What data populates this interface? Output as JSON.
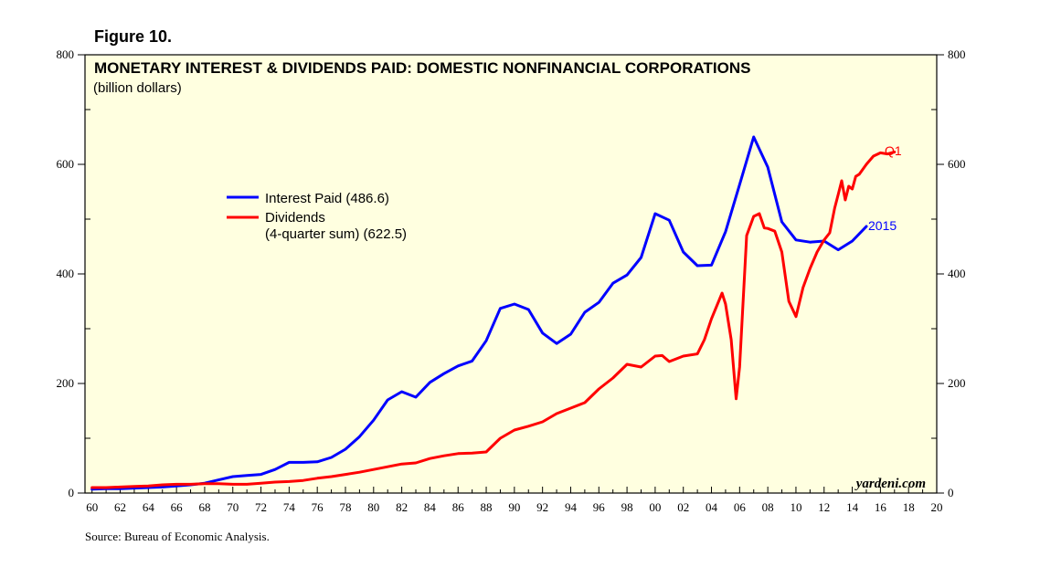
{
  "figure_label": "Figure 10.",
  "source": "Source: Bureau of Economic Analysis.",
  "colors": {
    "background": "#FFFFE0",
    "interest": "#0000FF",
    "dividends": "#FF0000"
  },
  "chart_data": {
    "type": "line",
    "title": "MONETARY INTEREST & DIVIDENDS PAID: DOMESTIC NONFINANCIAL CORPORATIONS",
    "subtitle": "(billion dollars)",
    "credit": "yardeni.com",
    "xlim": [
      1959.5,
      2020
    ],
    "ylim": [
      0,
      800
    ],
    "y_ticks": [
      0,
      200,
      400,
      600,
      800
    ],
    "x_ticks": [
      1960,
      1962,
      1964,
      1966,
      1968,
      1970,
      1972,
      1974,
      1976,
      1978,
      1980,
      1982,
      1984,
      1986,
      1988,
      1990,
      1992,
      1994,
      1996,
      1998,
      2000,
      2002,
      2004,
      2006,
      2008,
      2010,
      2012,
      2014,
      2016,
      2018,
      2020
    ],
    "x_tick_labels": [
      "60",
      "62",
      "64",
      "66",
      "68",
      "70",
      "72",
      "74",
      "76",
      "78",
      "80",
      "82",
      "84",
      "86",
      "88",
      "90",
      "92",
      "94",
      "96",
      "98",
      "00",
      "02",
      "04",
      "06",
      "08",
      "10",
      "12",
      "14",
      "16",
      "18",
      "20"
    ],
    "series": [
      {
        "name": "Interest Paid",
        "legend": "Interest Paid (486.6)",
        "color": "#0000FF",
        "end_label": "2015",
        "x": [
          1960,
          1961,
          1962,
          1963,
          1964,
          1965,
          1966,
          1967,
          1968,
          1969,
          1970,
          1971,
          1972,
          1973,
          1974,
          1975,
          1976,
          1977,
          1978,
          1979,
          1980,
          1981,
          1982,
          1983,
          1984,
          1985,
          1986,
          1987,
          1988,
          1989,
          1990,
          1991,
          1992,
          1993,
          1994,
          1995,
          1996,
          1997,
          1998,
          1999,
          2000,
          2001,
          2002,
          2003,
          2004,
          2005,
          2006,
          2007,
          2008,
          2009,
          2010,
          2011,
          2012,
          2013,
          2014,
          2015
        ],
        "values": [
          7,
          8,
          8,
          9,
          10,
          11,
          13,
          15,
          18,
          24,
          30,
          32,
          34,
          43,
          56,
          56,
          57,
          65,
          80,
          103,
          133,
          170,
          185,
          175,
          202,
          218,
          232,
          241,
          278,
          337,
          345,
          335,
          292,
          273,
          290,
          330,
          348,
          383,
          398,
          430,
          510,
          498,
          440,
          415,
          416,
          477,
          563,
          650,
          595,
          495,
          462,
          458,
          460,
          444,
          460,
          486.6
        ]
      },
      {
        "name": "Dividends",
        "legend": "Dividends",
        "legend_line2": "(4-quarter sum) (622.5)",
        "color": "#FF0000",
        "end_label": "Q1",
        "x": [
          1960,
          1961,
          1962,
          1963,
          1964,
          1965,
          1966,
          1967,
          1968,
          1969,
          1970,
          1971,
          1972,
          1973,
          1974,
          1975,
          1976,
          1977,
          1978,
          1979,
          1980,
          1981,
          1982,
          1983,
          1984,
          1985,
          1986,
          1987,
          1988,
          1989,
          1990,
          1991,
          1992,
          1993,
          1994,
          1995,
          1996,
          1997,
          1998,
          1999,
          2000,
          2000.5,
          2001,
          2002,
          2003,
          2003.5,
          2004,
          2004.75,
          2005,
          2005.4,
          2005.75,
          2006,
          2006.5,
          2007,
          2007.4,
          2007.75,
          2008,
          2008.5,
          2009,
          2009.5,
          2010,
          2010.5,
          2011,
          2011.5,
          2012,
          2012.4,
          2012.75,
          2013,
          2013.25,
          2013.5,
          2013.75,
          2014,
          2014.25,
          2014.5,
          2015,
          2015.5,
          2016,
          2016.5,
          2017
        ],
        "values": [
          10,
          10,
          11,
          12,
          13,
          15,
          16,
          16,
          17,
          17,
          16,
          16,
          18,
          20,
          21,
          23,
          27,
          30,
          34,
          38,
          43,
          48,
          53,
          55,
          63,
          68,
          72,
          73,
          75,
          100,
          115,
          122,
          130,
          145,
          155,
          165,
          190,
          210,
          235,
          230,
          250,
          251,
          240,
          250,
          254,
          280,
          318,
          365,
          345,
          280,
          172,
          230,
          470,
          505,
          510,
          484,
          483,
          478,
          440,
          350,
          322,
          375,
          410,
          440,
          462,
          475,
          520,
          545,
          570,
          535,
          560,
          555,
          578,
          582,
          600,
          615,
          621,
          619,
          622.5
        ]
      }
    ]
  }
}
